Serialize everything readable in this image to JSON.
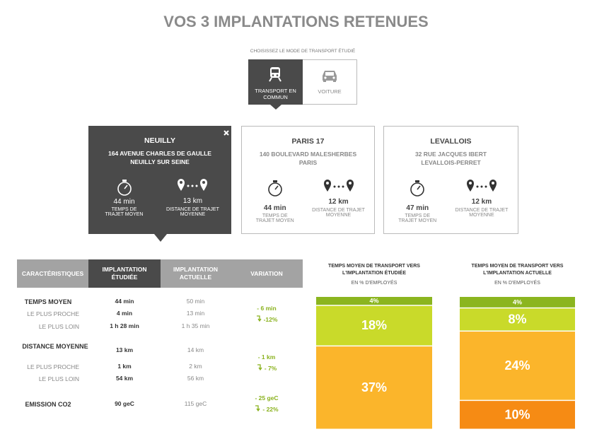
{
  "header": {
    "title": "VOS 3 IMPLANTATIONS RETENUES"
  },
  "transport": {
    "label": "CHOISISSEZ LE MODE DE TRANSPORT ÉTUDIÉ",
    "options": [
      "TRANSPORT EN COMMUN",
      "VOITURE"
    ]
  },
  "sites": [
    {
      "name": "NEUILLY",
      "address": [
        "164 AVENUE CHARLES DE GAULLE",
        "NEUILLY SUR SEINE"
      ],
      "time": "44 min",
      "time_label": "TEMPS DE TRAJET MOYEN",
      "distance": "13 km",
      "distance_label": "DISTANCE DE TRAJET MOYENNE"
    },
    {
      "name": "PARIS 17",
      "address": [
        "140 BOULEVARD MALESHERBES",
        "PARIS"
      ],
      "time": "44 min",
      "time_label": "TEMPS DE TRAJET MOYEN",
      "distance": "12 km",
      "distance_label": "DISTANCE DE TRAJET MOYENNE"
    },
    {
      "name": "LEVALLOIS",
      "address": [
        "32 RUE JACQUES IBERT",
        "LEVALLOIS-PERRET"
      ],
      "time": "47 min",
      "time_label": "TEMPS DE TRAJET MOYEN",
      "distance": "12 km",
      "distance_label": "DISTANCE DE TRAJET MOYENNE"
    }
  ],
  "table": {
    "headers": [
      "CARACTÉRISTIQUES",
      "IMPLANTATION ÉTUDIÉE",
      "IMPLANTATION ACTUELLE",
      "VARIATION"
    ],
    "groups": [
      {
        "rows": [
          [
            "TEMPS MOYEN",
            "44 min",
            "50 min"
          ],
          [
            "LE PLUS PROCHE",
            "4 min",
            "13 min"
          ],
          [
            "LE PLUS LOIN",
            "1 h 28 min",
            "1 h 35 min"
          ]
        ],
        "variation": [
          "- 6 min",
          "-12%"
        ]
      },
      {
        "rows": [
          [
            "DISTANCE MOYENNE",
            "13 km",
            "14 km"
          ],
          [
            "LE PLUS PROCHE",
            "1 km",
            "2 km"
          ],
          [
            "LE PLUS LOIN",
            "54 km",
            "56 km"
          ]
        ],
        "variation": [
          "- 1 km",
          "- 7%"
        ]
      },
      {
        "rows": [
          [
            "EMISSION CO2",
            "90 geC",
            "115 geC"
          ]
        ],
        "variation": [
          "- 25 geC",
          "- 22%"
        ]
      }
    ]
  },
  "chart_data": [
    {
      "type": "stacked-bar",
      "title": "TEMPS MOYEN DE TRANSPORT VERS L'IMPLANTATION ÉTUDIÉE",
      "subtitle": "EN % D'EMPLOYÉS",
      "values": [
        4,
        18,
        37
      ],
      "value_labels": [
        "4%",
        "18%",
        "37%"
      ],
      "colors": [
        "#8bb51f",
        "#c9da2a",
        "#fbb52b"
      ]
    },
    {
      "type": "stacked-bar",
      "title": "TEMPS MOYEN DE TRANSPORT VERS L'IMPLANTATION ACTUELLE",
      "subtitle": "EN % D'EMPLOYÉS",
      "values": [
        4,
        8,
        24,
        10
      ],
      "value_labels": [
        "4%",
        "8%",
        "24%",
        "10%"
      ],
      "colors": [
        "#8bb51f",
        "#c9da2a",
        "#fbb52b",
        "#f68b14"
      ]
    }
  ]
}
